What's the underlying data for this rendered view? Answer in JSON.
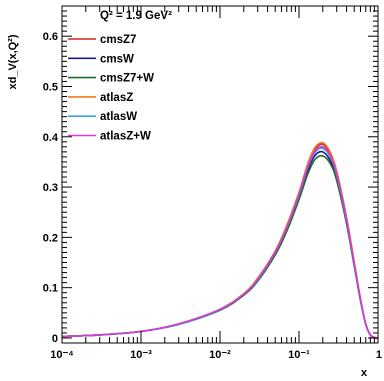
{
  "chart_data": {
    "type": "line",
    "ylabel": "xd_V(x,Q²)",
    "xlabel": "x",
    "x_scale": "log",
    "xlim": [
      0.0001,
      1
    ],
    "ylim": [
      -0.01,
      0.66
    ],
    "grid": false,
    "legend_placement": "top-left",
    "legend_header": "Q² = 1.9 GeV²",
    "x_ticks": [
      {
        "label": "10⁻⁴",
        "value": 0.0001
      },
      {
        "label": "10⁻³",
        "value": 0.001
      },
      {
        "label": "10⁻²",
        "value": 0.01
      },
      {
        "label": "10⁻¹",
        "value": 0.1
      },
      {
        "label": "1",
        "value": 1
      }
    ],
    "y_ticks": [
      {
        "label": "0",
        "value": 0
      },
      {
        "label": "0.1",
        "value": 0.1
      },
      {
        "label": "0.2",
        "value": 0.2
      },
      {
        "label": "0.3",
        "value": 0.3
      },
      {
        "label": "0.4",
        "value": 0.4
      },
      {
        "label": "0.5",
        "value": 0.5
      },
      {
        "label": "0.6",
        "value": 0.6
      }
    ],
    "x": [
      0.0001,
      0.0003,
      0.001,
      0.003,
      0.01,
      0.02,
      0.03,
      0.05,
      0.07,
      0.1,
      0.13,
      0.16,
      0.2,
      0.25,
      0.3,
      0.4,
      0.5,
      0.6,
      0.7,
      0.8,
      0.9
    ],
    "series": [
      {
        "name": "cmsZ7",
        "color": "#d62020",
        "values": [
          0.003,
          0.006,
          0.013,
          0.028,
          0.057,
          0.088,
          0.118,
          0.172,
          0.222,
          0.288,
          0.345,
          0.376,
          0.385,
          0.366,
          0.33,
          0.238,
          0.15,
          0.078,
          0.028,
          0.006,
          0.001
        ]
      },
      {
        "name": "cmsW",
        "color": "#1a1a8c",
        "values": [
          0.003,
          0.006,
          0.013,
          0.027,
          0.056,
          0.086,
          0.115,
          0.168,
          0.216,
          0.28,
          0.334,
          0.363,
          0.37,
          0.352,
          0.318,
          0.23,
          0.145,
          0.075,
          0.027,
          0.006,
          0.001
        ]
      },
      {
        "name": "cmsZ7+W",
        "color": "#1d6b2a",
        "values": [
          0.003,
          0.006,
          0.013,
          0.027,
          0.055,
          0.085,
          0.113,
          0.165,
          0.212,
          0.275,
          0.327,
          0.355,
          0.362,
          0.346,
          0.313,
          0.227,
          0.143,
          0.074,
          0.027,
          0.006,
          0.001
        ]
      },
      {
        "name": "atlasZ",
        "color": "#f07a1a",
        "values": [
          0.003,
          0.006,
          0.013,
          0.028,
          0.057,
          0.088,
          0.119,
          0.173,
          0.224,
          0.29,
          0.348,
          0.379,
          0.388,
          0.369,
          0.332,
          0.24,
          0.151,
          0.078,
          0.028,
          0.006,
          0.001
        ]
      },
      {
        "name": "atlasW",
        "color": "#3aa0e8",
        "values": [
          0.003,
          0.006,
          0.013,
          0.027,
          0.056,
          0.087,
          0.116,
          0.17,
          0.219,
          0.284,
          0.34,
          0.369,
          0.377,
          0.359,
          0.324,
          0.234,
          0.147,
          0.076,
          0.027,
          0.006,
          0.001
        ]
      },
      {
        "name": "atlasZ+W",
        "color": "#d63ad6",
        "values": [
          0.003,
          0.006,
          0.013,
          0.028,
          0.057,
          0.087,
          0.117,
          0.171,
          0.22,
          0.286,
          0.342,
          0.372,
          0.38,
          0.362,
          0.326,
          0.236,
          0.148,
          0.077,
          0.028,
          0.006,
          0.001
        ]
      }
    ]
  }
}
